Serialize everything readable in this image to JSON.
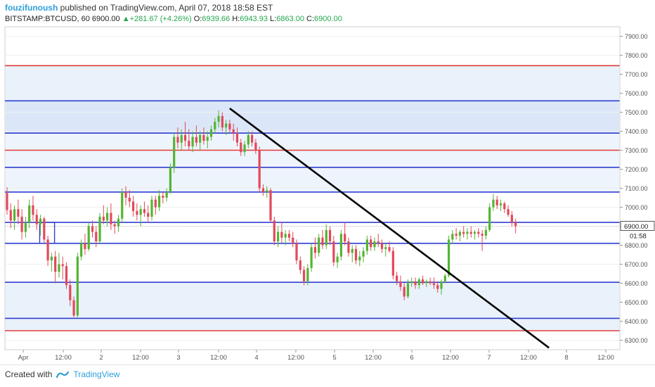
{
  "header": {
    "author": "fouzifunoush",
    "published_text": "published on TradingView.com, April 07, 2018 18:58 EST",
    "symbol": "BITSTAMP:BTCUSD, 60",
    "last": "6900.00",
    "change_arrow": "▲",
    "change": "+281.67 (+4.26%)",
    "o_label": "O:",
    "o_value": "6939.66",
    "h_label": "H:",
    "h_value": "6943.93",
    "l_label": "L:",
    "l_value": "6863.00",
    "c_label": "C:",
    "c_value": "6900.00"
  },
  "footer": {
    "created_with": "Created with",
    "brand": "TradingView"
  },
  "chart_data": {
    "type": "candlestick",
    "ylim": [
      6250,
      7950
    ],
    "y_ticks": [
      6300,
      6400,
      6500,
      6600,
      6700,
      6800,
      6900,
      7000,
      7100,
      7200,
      7300,
      7400,
      7500,
      7600,
      7700,
      7800,
      7900
    ],
    "x_ticks": [
      "Apr",
      "12:00",
      "2",
      "12:00",
      "3",
      "12:00",
      "4",
      "12:00",
      "5",
      "12:00",
      "6",
      "12:00",
      "7",
      "12:00",
      "8",
      "12:00"
    ],
    "price_label": "6900.00",
    "countdown_label": "01:58",
    "shaded_zones": [
      {
        "from": 7560,
        "to": 7745,
        "color": "#e9f1fb"
      },
      {
        "from": 7390,
        "to": 7560,
        "color": "#dbe7f8"
      },
      {
        "from": 7080,
        "to": 7390,
        "color": "#eef4fc"
      },
      {
        "from": 6350,
        "to": 6605,
        "color": "#e9f1fb"
      }
    ],
    "horizontal_lines": [
      {
        "value": 7745,
        "color": "#e03b3b"
      },
      {
        "value": 7560,
        "color": "#2f3fd0"
      },
      {
        "value": 7390,
        "color": "#2f3fd0"
      },
      {
        "value": 7300,
        "color": "#e03b3b"
      },
      {
        "value": 7210,
        "color": "#2f3fd0"
      },
      {
        "value": 7080,
        "color": "#2f3fd0"
      },
      {
        "value": 6920,
        "color": "#2f3fd0"
      },
      {
        "value": 6810,
        "color": "#2f3fd0"
      },
      {
        "value": 6605,
        "color": "#2f3fd0"
      },
      {
        "value": 6415,
        "color": "#2f3fd0"
      },
      {
        "value": 6350,
        "color": "#e03b3b"
      }
    ],
    "trend_line": {
      "from": {
        "t": 30,
        "v": 7520
      },
      "to": {
        "t": 73,
        "v": 6260
      }
    },
    "candles": [
      [
        0,
        7075,
        7105,
        6960,
        6985
      ],
      [
        0.5,
        6985,
        7020,
        6890,
        6930
      ],
      [
        1,
        6930,
        7010,
        6880,
        6990
      ],
      [
        1.5,
        6990,
        7040,
        6910,
        6950
      ],
      [
        2,
        6950,
        6990,
        6830,
        6870
      ],
      [
        2.5,
        6870,
        6950,
        6840,
        6920
      ],
      [
        3,
        6920,
        7040,
        6890,
        7010
      ],
      [
        3.5,
        7010,
        7060,
        6930,
        6960
      ],
      [
        4,
        6960,
        6990,
        6880,
        6910
      ],
      [
        4.5,
        6910,
        6960,
        6850,
        6940
      ],
      [
        5,
        6940,
        6950,
        6810,
        6830
      ],
      [
        5.5,
        6830,
        6850,
        6690,
        6720
      ],
      [
        6,
        6720,
        6760,
        6660,
        6740
      ],
      [
        6.5,
        6740,
        6770,
        6600,
        6660
      ],
      [
        7,
        6660,
        6760,
        6630,
        6700
      ],
      [
        7.5,
        6700,
        6740,
        6620,
        6690
      ],
      [
        8,
        6690,
        6710,
        6570,
        6590
      ],
      [
        8.5,
        6590,
        6620,
        6480,
        6510
      ],
      [
        9,
        6510,
        6530,
        6420,
        6430
      ],
      [
        9.5,
        6430,
        6760,
        6420,
        6740
      ],
      [
        10,
        6740,
        6830,
        6720,
        6810
      ],
      [
        10.5,
        6810,
        6860,
        6750,
        6780
      ],
      [
        11,
        6780,
        6920,
        6770,
        6900
      ],
      [
        11.5,
        6900,
        6930,
        6840,
        6870
      ],
      [
        12,
        6870,
        6900,
        6790,
        6820
      ],
      [
        12.5,
        6820,
        6970,
        6810,
        6950
      ],
      [
        13,
        6950,
        7010,
        6910,
        6930
      ],
      [
        13.5,
        6930,
        7000,
        6900,
        6970
      ],
      [
        14,
        6970,
        7020,
        6880,
        6910
      ],
      [
        14.5,
        6910,
        6930,
        6860,
        6900
      ],
      [
        15,
        6900,
        6960,
        6870,
        6940
      ],
      [
        15.5,
        6940,
        7100,
        6920,
        7080
      ],
      [
        16,
        7080,
        7110,
        7010,
        7050
      ],
      [
        16.5,
        7050,
        7090,
        7000,
        7030
      ],
      [
        17,
        7030,
        7060,
        6950,
        6980
      ],
      [
        17.5,
        6980,
        7020,
        6930,
        6960
      ],
      [
        18,
        6960,
        7010,
        6900,
        6990
      ],
      [
        18.5,
        6990,
        7030,
        6950,
        6970
      ],
      [
        19,
        6970,
        7010,
        6920,
        6950
      ],
      [
        19.5,
        6950,
        7060,
        6930,
        7040
      ],
      [
        20,
        7040,
        7060,
        6960,
        7000
      ],
      [
        20.5,
        7000,
        7090,
        6980,
        7060
      ],
      [
        21,
        7060,
        7080,
        7020,
        7050
      ],
      [
        21.5,
        7050,
        7100,
        7030,
        7080
      ],
      [
        22,
        7080,
        7230,
        7070,
        7210
      ],
      [
        22.5,
        7210,
        7390,
        7180,
        7370
      ],
      [
        23,
        7370,
        7420,
        7310,
        7340
      ],
      [
        23.5,
        7340,
        7410,
        7300,
        7380
      ],
      [
        24,
        7380,
        7450,
        7320,
        7350
      ],
      [
        24.5,
        7350,
        7410,
        7300,
        7320
      ],
      [
        25,
        7320,
        7400,
        7290,
        7370
      ],
      [
        25.5,
        7370,
        7430,
        7320,
        7340
      ],
      [
        26,
        7340,
        7400,
        7300,
        7380
      ],
      [
        26.5,
        7380,
        7420,
        7330,
        7350
      ],
      [
        27,
        7350,
        7400,
        7310,
        7370
      ],
      [
        27.5,
        7370,
        7430,
        7350,
        7410
      ],
      [
        28,
        7410,
        7470,
        7390,
        7450
      ],
      [
        28.5,
        7450,
        7510,
        7420,
        7480
      ],
      [
        29,
        7480,
        7500,
        7400,
        7420
      ],
      [
        29.5,
        7420,
        7460,
        7380,
        7440
      ],
      [
        30,
        7440,
        7460,
        7390,
        7410
      ],
      [
        30.5,
        7410,
        7440,
        7350,
        7390
      ],
      [
        31,
        7390,
        7420,
        7320,
        7340
      ],
      [
        31.5,
        7340,
        7360,
        7270,
        7290
      ],
      [
        32,
        7290,
        7350,
        7270,
        7330
      ],
      [
        32.5,
        7330,
        7400,
        7310,
        7380
      ],
      [
        33,
        7380,
        7400,
        7320,
        7340
      ],
      [
        33.5,
        7340,
        7360,
        7280,
        7300
      ],
      [
        34,
        7300,
        7320,
        7080,
        7100
      ],
      [
        34.5,
        7100,
        7120,
        7060,
        7080
      ],
      [
        35,
        7080,
        7110,
        7050,
        7090
      ],
      [
        35.5,
        7090,
        7100,
        6920,
        6930
      ],
      [
        36,
        6930,
        6950,
        6800,
        6820
      ],
      [
        36.5,
        6820,
        6900,
        6790,
        6870
      ],
      [
        37,
        6870,
        6920,
        6810,
        6840
      ],
      [
        37.5,
        6840,
        6880,
        6800,
        6860
      ],
      [
        38,
        6860,
        6880,
        6820,
        6840
      ],
      [
        38.5,
        6840,
        6870,
        6790,
        6810
      ],
      [
        39,
        6810,
        6830,
        6700,
        6720
      ],
      [
        39.5,
        6720,
        6740,
        6650,
        6670
      ],
      [
        40,
        6670,
        6690,
        6590,
        6610
      ],
      [
        40.5,
        6610,
        6700,
        6590,
        6680
      ],
      [
        41,
        6680,
        6810,
        6660,
        6790
      ],
      [
        41.5,
        6790,
        6840,
        6730,
        6760
      ],
      [
        42,
        6760,
        6860,
        6740,
        6840
      ],
      [
        42.5,
        6840,
        6880,
        6780,
        6800
      ],
      [
        43,
        6800,
        6910,
        6780,
        6880
      ],
      [
        43.5,
        6880,
        6900,
        6800,
        6820
      ],
      [
        44,
        6820,
        6850,
        6690,
        6710
      ],
      [
        44.5,
        6710,
        6760,
        6680,
        6740
      ],
      [
        45,
        6740,
        6880,
        6720,
        6860
      ],
      [
        45.5,
        6860,
        6920,
        6800,
        6820
      ],
      [
        46,
        6820,
        6840,
        6740,
        6760
      ],
      [
        46.5,
        6760,
        6800,
        6710,
        6780
      ],
      [
        47,
        6780,
        6800,
        6700,
        6720
      ],
      [
        47.5,
        6720,
        6770,
        6690,
        6740
      ],
      [
        48,
        6740,
        6790,
        6710,
        6770
      ],
      [
        48.5,
        6770,
        6850,
        6750,
        6830
      ],
      [
        49,
        6830,
        6850,
        6770,
        6790
      ],
      [
        49.5,
        6790,
        6840,
        6770,
        6820
      ],
      [
        50,
        6820,
        6860,
        6790,
        6810
      ],
      [
        50.5,
        6810,
        6830,
        6760,
        6780
      ],
      [
        51,
        6780,
        6810,
        6740,
        6790
      ],
      [
        51.5,
        6790,
        6820,
        6760,
        6770
      ],
      [
        52,
        6770,
        6790,
        6620,
        6640
      ],
      [
        52.5,
        6640,
        6660,
        6590,
        6610
      ],
      [
        53,
        6610,
        6640,
        6560,
        6580
      ],
      [
        53.5,
        6580,
        6600,
        6510,
        6530
      ],
      [
        54,
        6530,
        6620,
        6520,
        6600
      ],
      [
        54.5,
        6600,
        6630,
        6580,
        6610
      ],
      [
        55,
        6610,
        6630,
        6570,
        6590
      ],
      [
        55.5,
        6590,
        6630,
        6570,
        6620
      ],
      [
        56,
        6620,
        6640,
        6590,
        6600
      ],
      [
        56.5,
        6600,
        6620,
        6580,
        6610
      ],
      [
        57,
        6610,
        6630,
        6590,
        6600
      ],
      [
        57.5,
        6600,
        6630,
        6570,
        6590
      ],
      [
        58,
        6590,
        6610,
        6550,
        6570
      ],
      [
        58.5,
        6570,
        6620,
        6540,
        6610
      ],
      [
        59,
        6610,
        6650,
        6600,
        6640
      ],
      [
        59.5,
        6640,
        6850,
        6630,
        6830
      ],
      [
        60,
        6830,
        6880,
        6810,
        6860
      ],
      [
        60.5,
        6860,
        6890,
        6830,
        6850
      ],
      [
        61,
        6850,
        6880,
        6820,
        6870
      ],
      [
        61.5,
        6870,
        6900,
        6840,
        6860
      ],
      [
        62,
        6860,
        6890,
        6830,
        6870
      ],
      [
        62.5,
        6870,
        6900,
        6840,
        6860
      ],
      [
        63,
        6860,
        6880,
        6830,
        6870
      ],
      [
        63.5,
        6870,
        6890,
        6840,
        6860
      ],
      [
        64,
        6860,
        6880,
        6770,
        6850
      ],
      [
        64.5,
        6850,
        6900,
        6830,
        6880
      ],
      [
        65,
        6880,
        7020,
        6870,
        7000
      ],
      [
        65.5,
        7000,
        7070,
        6980,
        7040
      ],
      [
        66,
        7040,
        7060,
        6990,
        7010
      ],
      [
        66.5,
        7010,
        7040,
        6980,
        7020
      ],
      [
        67,
        7020,
        7030,
        6970,
        6990
      ],
      [
        67.5,
        6990,
        7010,
        6950,
        6960
      ],
      [
        68,
        6960,
        6980,
        6900,
        6920
      ],
      [
        68.5,
        6920,
        6940,
        6863,
        6900
      ]
    ]
  }
}
